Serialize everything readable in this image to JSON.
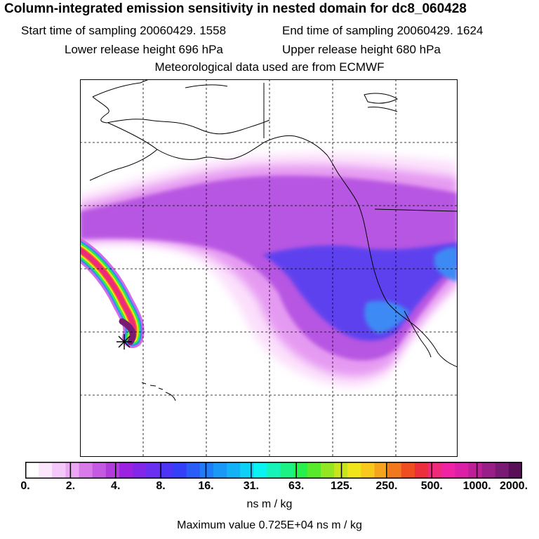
{
  "header": {
    "title": "Column-integrated emission sensitivity in nested domain for dc8_060428",
    "start_time": "Start time of sampling 20060429.  1558",
    "end_time": "End time of sampling 20060429.  1624",
    "lower_height": "Lower release height  696 hPa",
    "upper_height": "Upper release height  680 hPa",
    "met_data": "Meteorological data used are from ECMWF"
  },
  "legend": {
    "tick_labels": [
      "0.",
      "2.",
      "4.",
      "8.",
      "16.",
      "31.",
      "63.",
      "125.",
      "250.",
      "500.",
      "1000.",
      "2000."
    ],
    "units": "ns m / kg",
    "max_value": "Maximum value  0.725E+04 ns m / kg",
    "colors": [
      "#ffffff",
      "#fbe6fc",
      "#f4c8f8",
      "#eca7f4",
      "#d87be9",
      "#c55ae2",
      "#b13cdc",
      "#9a22e0",
      "#8227ea",
      "#6a30f2",
      "#4d35f6",
      "#3440f8",
      "#2a5cf8",
      "#1f7cf7",
      "#1a98f7",
      "#13b2f6",
      "#0ecff5",
      "#0af2f2",
      "#16f3b9",
      "#1cf183",
      "#27ef4b",
      "#58e92a",
      "#93e622",
      "#c7e41c",
      "#f0e51a",
      "#f9c81c",
      "#f6a41e",
      "#f1781f",
      "#ee4e20",
      "#eb2f3b",
      "#ee2a7b",
      "#ef23a3",
      "#db1fa6",
      "#bd1f98",
      "#9a1e87",
      "#791a74",
      "#5a1058"
    ]
  },
  "map": {
    "marker": "release-point-marker",
    "colors": {
      "light": "#fbdcfb",
      "pink": "#f1b4f2",
      "lavender": "#e28ff0",
      "magenta": "#d56ae8",
      "violet": "#b04ce0",
      "purple": "#9b35e0",
      "indigo": "#6f2fe6",
      "blue": "#4a3cf2",
      "skyblue": "#3d8af4"
    }
  }
}
